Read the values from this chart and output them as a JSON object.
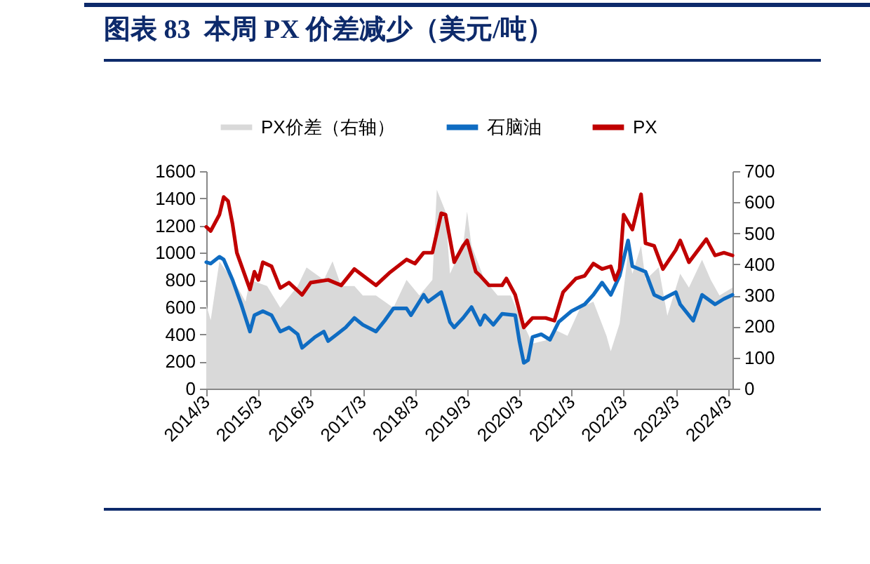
{
  "chart_data": {
    "type": "line",
    "title": "图表 83  本周 PX 价差减少（美元/吨）",
    "legend": "top",
    "grid": false,
    "xlim": [
      "2014-03",
      "2024-04"
    ],
    "xticks": [
      {
        "value": "2014-03",
        "label": "2014/3"
      },
      {
        "value": "2015-03",
        "label": "2015/3"
      },
      {
        "value": "2016-03",
        "label": "2016/3"
      },
      {
        "value": "2017-03",
        "label": "2017/3"
      },
      {
        "value": "2018-03",
        "label": "2018/3"
      },
      {
        "value": "2019-03",
        "label": "2019/3"
      },
      {
        "value": "2020-03",
        "label": "2020/3"
      },
      {
        "value": "2021-03",
        "label": "2021/3"
      },
      {
        "value": "2022-03",
        "label": "2022/3"
      },
      {
        "value": "2023-03",
        "label": "2023/3"
      },
      {
        "value": "2024-03",
        "label": "2024/3"
      }
    ],
    "ylim": [
      0,
      1600
    ],
    "yticks": [
      0,
      200,
      400,
      600,
      800,
      1000,
      1200,
      1400,
      1600
    ],
    "y2lim": [
      0,
      700
    ],
    "y2ticks": [
      0,
      100,
      200,
      300,
      400,
      500,
      600,
      700
    ],
    "series": [
      {
        "name": "PX价差（右轴）",
        "type": "area",
        "axis": "y2",
        "color": "#d9d9d9",
        "x": [
          "2014-03",
          "2014-04",
          "2014-06",
          "2014-07",
          "2014-10",
          "2014-12",
          "2015-01",
          "2015-05",
          "2015-08",
          "2015-12",
          "2016-02",
          "2016-06",
          "2016-08",
          "2016-10",
          "2017-01",
          "2017-03",
          "2017-06",
          "2017-10",
          "2018-01",
          "2018-04",
          "2018-07",
          "2018-08",
          "2018-10",
          "2018-11",
          "2019-02",
          "2019-03",
          "2019-04",
          "2019-07",
          "2019-10",
          "2020-01",
          "2020-03",
          "2020-06",
          "2020-09",
          "2020-11",
          "2021-02",
          "2021-05",
          "2021-08",
          "2021-11",
          "2021-12",
          "2022-02",
          "2022-04",
          "2022-05",
          "2022-07",
          "2022-08",
          "2022-11",
          "2023-01",
          "2023-04",
          "2023-06",
          "2023-09",
          "2023-11",
          "2024-01",
          "2024-04"
        ],
        "values": [
          270,
          220,
          410,
          390,
          330,
          280,
          350,
          330,
          260,
          330,
          390,
          350,
          410,
          330,
          330,
          300,
          300,
          260,
          350,
          300,
          350,
          640,
          570,
          370,
          460,
          570,
          460,
          350,
          300,
          300,
          235,
          145,
          155,
          190,
          170,
          260,
          280,
          170,
          120,
          210,
          440,
          370,
          460,
          350,
          390,
          235,
          370,
          325,
          415,
          350,
          300,
          325
        ]
      },
      {
        "name": "石脑油",
        "type": "line",
        "color": "#0f6cc2",
        "x": [
          "2014-03",
          "2014-04",
          "2014-06",
          "2014-07",
          "2014-09",
          "2014-11",
          "2015-01",
          "2015-02",
          "2015-04",
          "2015-06",
          "2015-08",
          "2015-10",
          "2015-12",
          "2016-01",
          "2016-04",
          "2016-06",
          "2016-07",
          "2016-09",
          "2016-11",
          "2017-01",
          "2017-03",
          "2017-06",
          "2017-08",
          "2017-10",
          "2018-01",
          "2018-02",
          "2018-05",
          "2018-06",
          "2018-09",
          "2018-11",
          "2018-12",
          "2019-02",
          "2019-04",
          "2019-06",
          "2019-07",
          "2019-09",
          "2019-11",
          "2020-02",
          "2020-03",
          "2020-04",
          "2020-05",
          "2020-06",
          "2020-08",
          "2020-10",
          "2020-12",
          "2021-03",
          "2021-06",
          "2021-08",
          "2021-10",
          "2021-12",
          "2022-02",
          "2022-04",
          "2022-05",
          "2022-08",
          "2022-10",
          "2022-12",
          "2023-03",
          "2023-04",
          "2023-07",
          "2023-09",
          "2023-12",
          "2024-02",
          "2024-04"
        ],
        "values": [
          930,
          920,
          970,
          950,
          800,
          620,
          420,
          540,
          570,
          540,
          420,
          450,
          400,
          300,
          380,
          420,
          350,
          400,
          450,
          520,
          470,
          420,
          500,
          590,
          590,
          540,
          690,
          640,
          710,
          490,
          450,
          520,
          600,
          470,
          540,
          470,
          550,
          540,
          350,
          190,
          210,
          380,
          400,
          360,
          490,
          570,
          620,
          690,
          780,
          690,
          830,
          1090,
          900,
          860,
          690,
          660,
          710,
          620,
          500,
          690,
          620,
          660,
          690
        ]
      },
      {
        "name": "PX",
        "type": "line",
        "color": "#c00000",
        "x": [
          "2014-03",
          "2014-04",
          "2014-06",
          "2014-07",
          "2014-08",
          "2014-09",
          "2014-10",
          "2015-01",
          "2015-02",
          "2015-03",
          "2015-04",
          "2015-06",
          "2015-08",
          "2015-10",
          "2016-01",
          "2016-03",
          "2016-07",
          "2016-10",
          "2017-01",
          "2017-06",
          "2017-09",
          "2018-01",
          "2018-03",
          "2018-05",
          "2018-07",
          "2018-09",
          "2018-10",
          "2018-12",
          "2019-02",
          "2019-03",
          "2019-05",
          "2019-06",
          "2019-08",
          "2019-11",
          "2019-12",
          "2020-02",
          "2020-04",
          "2020-06",
          "2020-09",
          "2020-11",
          "2021-01",
          "2021-04",
          "2021-06",
          "2021-08",
          "2021-10",
          "2021-12",
          "2022-01",
          "2022-02",
          "2022-03",
          "2022-05",
          "2022-07",
          "2022-08",
          "2022-10",
          "2022-12",
          "2023-03",
          "2023-04",
          "2023-06",
          "2023-10",
          "2023-12",
          "2024-02",
          "2024-04"
        ],
        "values": [
          1190,
          1160,
          1280,
          1410,
          1380,
          1210,
          1000,
          730,
          860,
          800,
          930,
          900,
          740,
          780,
          690,
          780,
          800,
          760,
          880,
          760,
          850,
          950,
          920,
          1000,
          1000,
          1290,
          1280,
          930,
          1050,
          1090,
          860,
          830,
          760,
          760,
          810,
          690,
          450,
          520,
          520,
          500,
          710,
          810,
          830,
          920,
          880,
          900,
          800,
          880,
          1280,
          1170,
          1430,
          1070,
          1050,
          880,
          1020,
          1090,
          930,
          1100,
          980,
          1000,
          980
        ]
      }
    ]
  }
}
